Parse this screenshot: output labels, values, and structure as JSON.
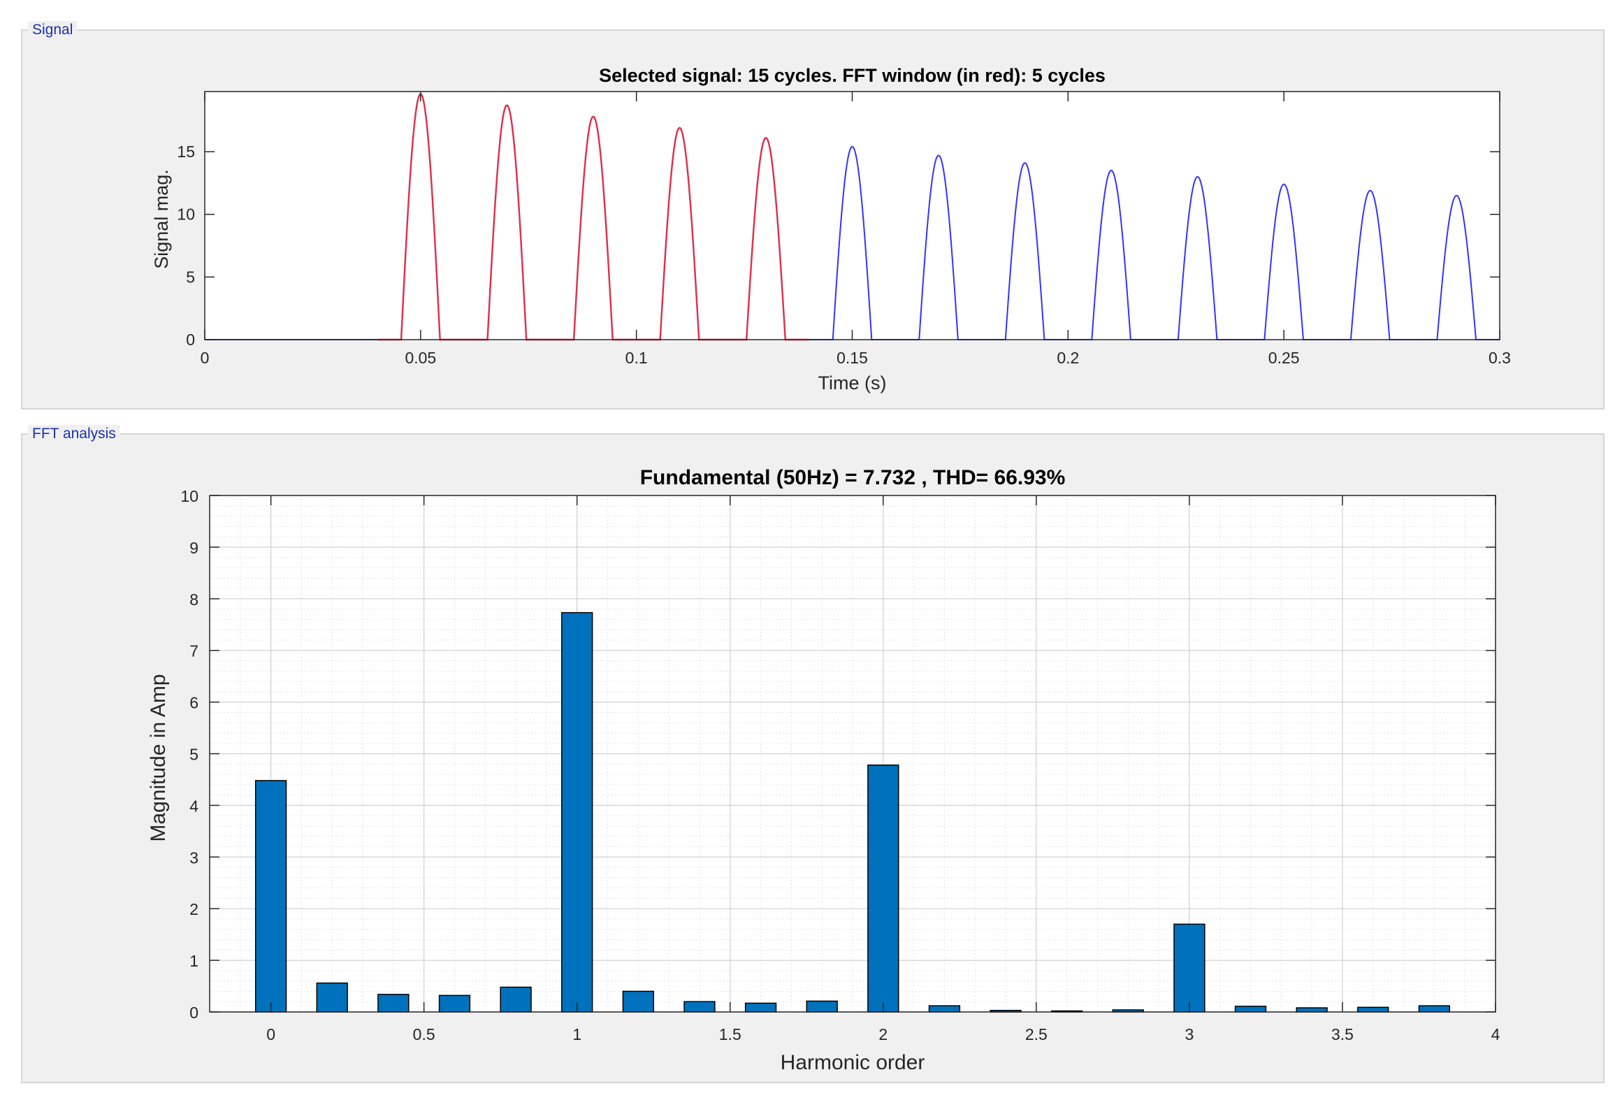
{
  "panels": {
    "signal": {
      "title": "Signal"
    },
    "fft": {
      "title": "FFT analysis"
    }
  },
  "chart_data": [
    {
      "type": "line",
      "title": "Selected signal: 15 cycles. FFT window (in red): 5 cycles",
      "xlabel": "Time (s)",
      "ylabel": "Signal mag.",
      "xlim": [
        0,
        0.3
      ],
      "ylim": [
        0,
        19.8
      ],
      "xticks": [
        0,
        0.05,
        0.1,
        0.15,
        0.2,
        0.25,
        0.3
      ],
      "xtick_labels": [
        "0",
        "0.05",
        "0.1",
        "0.15",
        "0.2",
        "0.25",
        "0.3"
      ],
      "yticks": [
        0,
        5,
        10,
        15
      ],
      "ytick_labels": [
        "0",
        "5",
        "10",
        "15"
      ],
      "grid": false,
      "pulses": {
        "x_peak": [
          0.05,
          0.07,
          0.09,
          0.11,
          0.13,
          0.15,
          0.17,
          0.19,
          0.21,
          0.23,
          0.25,
          0.27,
          0.29
        ],
        "peak": [
          19.6,
          18.7,
          17.8,
          16.9,
          16.1,
          15.4,
          14.7,
          14.1,
          13.5,
          13.0,
          12.4,
          11.9,
          11.5
        ],
        "half_width": 0.0045
      },
      "series": [
        {
          "color": "#3333ff",
          "x_range": [
            0,
            0.3
          ]
        },
        {
          "color": "#e0304a",
          "x_range": [
            0.04,
            0.14
          ]
        }
      ]
    },
    {
      "type": "bar",
      "title": "Fundamental (50Hz) = 7.732 , THD= 66.93%",
      "xlabel": "Harmonic order",
      "ylabel": "Magnitude in Amp",
      "xlim": [
        -0.2,
        4
      ],
      "ylim": [
        0,
        10
      ],
      "xticks": [
        0,
        0.5,
        1,
        1.5,
        2,
        2.5,
        3,
        3.5,
        4
      ],
      "xtick_labels": [
        "0",
        "0.5",
        "1",
        "1.5",
        "2",
        "2.5",
        "3",
        "3.5",
        "4"
      ],
      "yticks": [
        0,
        1,
        2,
        3,
        4,
        5,
        6,
        7,
        8,
        9,
        10
      ],
      "ytick_labels": [
        "0",
        "1",
        "2",
        "3",
        "4",
        "5",
        "6",
        "7",
        "8",
        "9",
        "10"
      ],
      "grid": true,
      "bar_width": 0.1,
      "color": "#0072bd",
      "x": [
        0,
        0.2,
        0.4,
        0.6,
        0.8,
        1.0,
        1.2,
        1.4,
        1.6,
        1.8,
        2.0,
        2.2,
        2.4,
        2.6,
        2.8,
        3.0,
        3.2,
        3.4,
        3.6,
        3.8
      ],
      "values": [
        4.48,
        0.56,
        0.34,
        0.32,
        0.48,
        7.732,
        0.4,
        0.2,
        0.17,
        0.21,
        4.78,
        0.12,
        0.03,
        0.02,
        0.04,
        1.7,
        0.11,
        0.08,
        0.09,
        0.12
      ]
    }
  ]
}
